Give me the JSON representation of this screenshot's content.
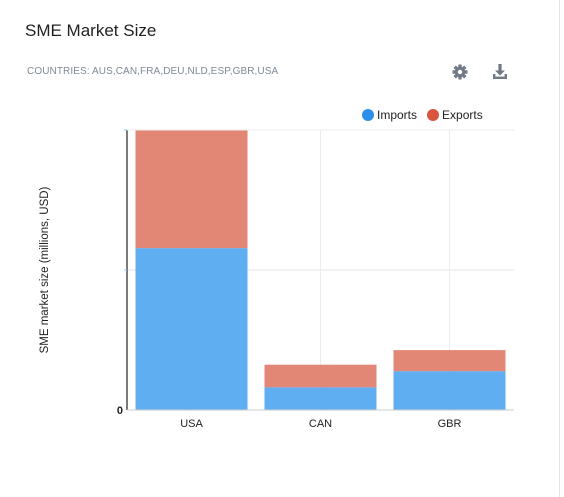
{
  "header": {
    "title": "SME Market Size",
    "subtitle": "COUNTRIES: AUS,CAN,FRA,DEU,NLD,ESP,GBR,USA"
  },
  "toolbar": {
    "settings_icon": "gear-icon",
    "download_icon": "download-icon",
    "icon_color": "#6f7a85"
  },
  "chart_data": {
    "type": "bar",
    "stacked": true,
    "categories": [
      "USA",
      "CAN",
      "GBR"
    ],
    "series": [
      {
        "name": "Imports",
        "color": "#56aaf0",
        "values": [
          100,
          14,
          24
        ]
      },
      {
        "name": "Exports",
        "color": "#e0816e",
        "values": [
          73,
          14,
          13
        ]
      }
    ],
    "title": "",
    "xlabel": "",
    "ylabel": "SME market size (millions, USD)",
    "ylim": [
      0,
      173
    ],
    "y_ticks_visible": [
      "0"
    ],
    "grid": true,
    "legend_position": "top-right"
  }
}
